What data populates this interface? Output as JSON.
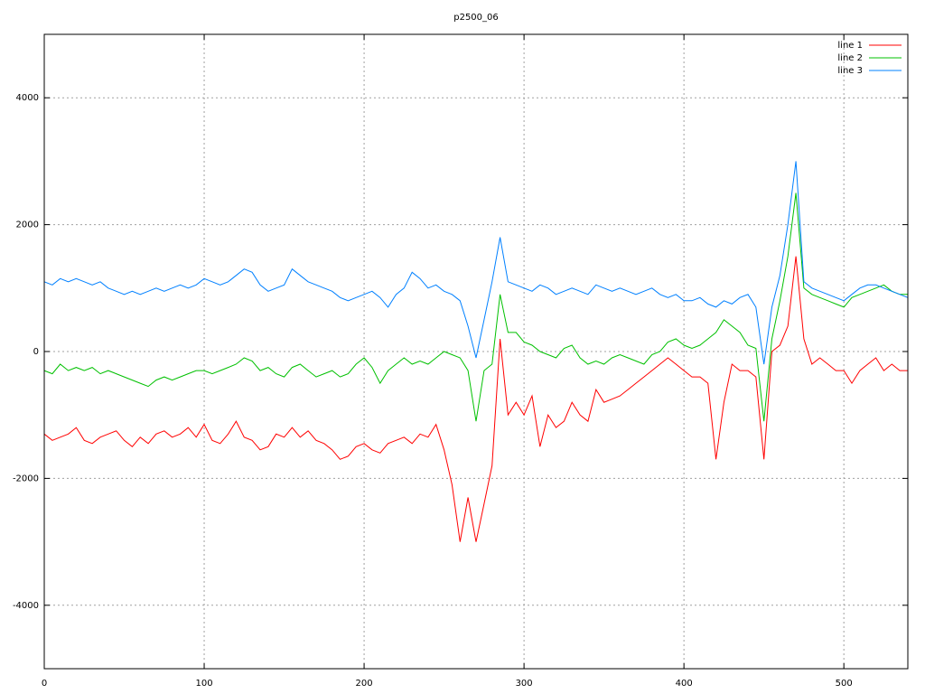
{
  "chart_data": {
    "type": "line",
    "title": "p2500_06",
    "x": [
      0,
      5,
      10,
      15,
      20,
      25,
      30,
      35,
      40,
      45,
      50,
      55,
      60,
      65,
      70,
      75,
      80,
      85,
      90,
      95,
      100,
      105,
      110,
      115,
      120,
      125,
      130,
      135,
      140,
      145,
      150,
      155,
      160,
      165,
      170,
      175,
      180,
      185,
      190,
      195,
      200,
      205,
      210,
      215,
      220,
      225,
      230,
      235,
      240,
      245,
      250,
      255,
      260,
      265,
      270,
      275,
      280,
      285,
      290,
      295,
      300,
      305,
      310,
      315,
      320,
      325,
      330,
      335,
      340,
      345,
      350,
      355,
      360,
      365,
      370,
      375,
      380,
      385,
      390,
      395,
      400,
      405,
      410,
      415,
      420,
      425,
      430,
      435,
      440,
      445,
      450,
      455,
      460,
      465,
      470,
      475,
      480,
      485,
      490,
      495,
      500,
      505,
      510,
      515,
      520,
      525,
      530,
      535,
      540
    ],
    "series": [
      {
        "name": "line 1",
        "color": "#ff0000",
        "values": [
          -1300,
          -1400,
          -1350,
          -1300,
          -1200,
          -1400,
          -1450,
          -1350,
          -1300,
          -1250,
          -1400,
          -1500,
          -1350,
          -1450,
          -1300,
          -1250,
          -1350,
          -1300,
          -1200,
          -1350,
          -1150,
          -1400,
          -1450,
          -1300,
          -1100,
          -1350,
          -1400,
          -1550,
          -1500,
          -1300,
          -1350,
          -1200,
          -1350,
          -1250,
          -1400,
          -1450,
          -1550,
          -1700,
          -1650,
          -1500,
          -1450,
          -1550,
          -1600,
          -1450,
          -1400,
          -1350,
          -1450,
          -1300,
          -1350,
          -1150,
          -1550,
          -2100,
          -3000,
          -2300,
          -3000,
          -2400,
          -1800,
          200,
          -1000,
          -800,
          -1000,
          -700,
          -1500,
          -1000,
          -1200,
          -1100,
          -800,
          -1000,
          -1100,
          -600,
          -800,
          -750,
          -700,
          -600,
          -500,
          -400,
          -300,
          -200,
          -100,
          -200,
          -300,
          -400,
          -400,
          -500,
          -1700,
          -800,
          -200,
          -300,
          -300,
          -400,
          -1700,
          0,
          100,
          400,
          1500,
          200,
          -200,
          -100,
          -200,
          -300,
          -300,
          -500,
          -300,
          -200,
          -100,
          -300,
          -200,
          -300,
          -300
        ]
      },
      {
        "name": "line 2",
        "color": "#00c000",
        "values": [
          -300,
          -350,
          -200,
          -300,
          -250,
          -300,
          -250,
          -350,
          -300,
          -350,
          -400,
          -450,
          -500,
          -550,
          -450,
          -400,
          -450,
          -400,
          -350,
          -300,
          -300,
          -350,
          -300,
          -250,
          -200,
          -100,
          -150,
          -300,
          -250,
          -350,
          -400,
          -250,
          -200,
          -300,
          -400,
          -350,
          -300,
          -400,
          -350,
          -200,
          -100,
          -250,
          -500,
          -300,
          -200,
          -100,
          -200,
          -150,
          -200,
          -100,
          0,
          -50,
          -100,
          -300,
          -1100,
          -300,
          -200,
          900,
          300,
          300,
          150,
          100,
          0,
          -50,
          -100,
          50,
          100,
          -100,
          -200,
          -150,
          -200,
          -100,
          -50,
          -100,
          -150,
          -200,
          -50,
          0,
          150,
          200,
          100,
          50,
          100,
          200,
          300,
          500,
          400,
          300,
          100,
          50,
          -1100,
          200,
          800,
          1500,
          2500,
          1000,
          900,
          850,
          800,
          750,
          700,
          850,
          900,
          950,
          1000,
          1050,
          950,
          900,
          900
        ]
      },
      {
        "name": "line 3",
        "color": "#0080ff",
        "values": [
          1100,
          1050,
          1150,
          1100,
          1150,
          1100,
          1050,
          1100,
          1000,
          950,
          900,
          950,
          900,
          950,
          1000,
          950,
          1000,
          1050,
          1000,
          1050,
          1150,
          1100,
          1050,
          1100,
          1200,
          1300,
          1250,
          1050,
          950,
          1000,
          1050,
          1300,
          1200,
          1100,
          1050,
          1000,
          950,
          850,
          800,
          850,
          900,
          950,
          850,
          700,
          900,
          1000,
          1250,
          1150,
          1000,
          1050,
          950,
          900,
          800,
          400,
          -100,
          500,
          1100,
          1800,
          1100,
          1050,
          1000,
          950,
          1050,
          1000,
          900,
          950,
          1000,
          950,
          900,
          1050,
          1000,
          950,
          1000,
          950,
          900,
          950,
          1000,
          900,
          850,
          900,
          800,
          800,
          850,
          750,
          700,
          800,
          750,
          850,
          900,
          700,
          -200,
          700,
          1200,
          2000,
          3000,
          1100,
          1000,
          950,
          900,
          850,
          800,
          900,
          1000,
          1050,
          1050,
          1000,
          950,
          900,
          850
        ]
      }
    ],
    "xlim": [
      0,
      540
    ],
    "ylim": [
      -5000,
      5000
    ],
    "xticks": [
      0,
      100,
      200,
      300,
      400,
      500
    ],
    "yticks": [
      -4000,
      -2000,
      0,
      2000,
      4000
    ],
    "grid": true,
    "legend": "top-right"
  }
}
